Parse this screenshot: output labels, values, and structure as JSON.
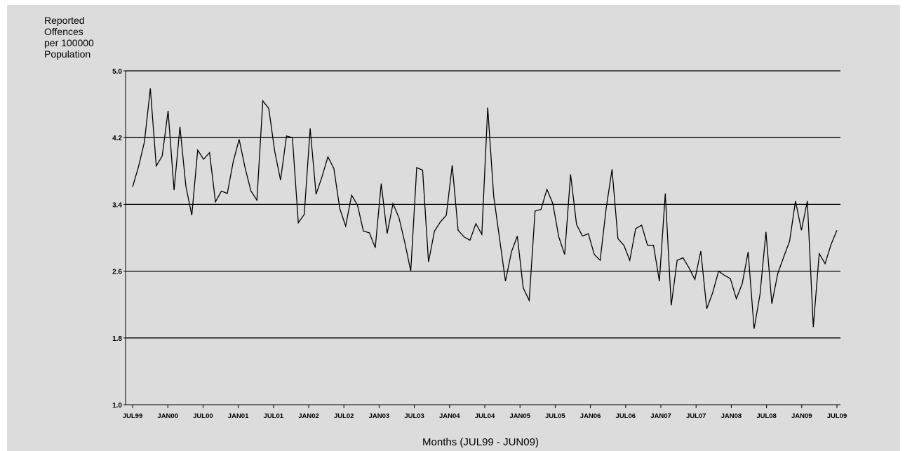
{
  "chart_data": {
    "type": "line",
    "ylabel_lines": [
      "Reported",
      "Offences",
      "per 100000",
      "Population"
    ],
    "xlabel": "Months (JUL99 - JUN09)",
    "ylim": [
      1.0,
      5.0
    ],
    "yticks": [
      "1.0",
      "1.8",
      "2.6",
      "3.4",
      "4.2",
      "5.0"
    ],
    "ytick_values": [
      1.0,
      1.8,
      2.6,
      3.4,
      4.2,
      5.0
    ],
    "gridlines": [
      1.8,
      2.6,
      3.4,
      4.2,
      5.0
    ],
    "xticks": [
      "JUL99",
      "JAN00",
      "JUL00",
      "JAN01",
      "JUL01",
      "JAN02",
      "JUL02",
      "JAN03",
      "JUL03",
      "JAN04",
      "JUL04",
      "JAN05",
      "JUL05",
      "JAN06",
      "JUL06",
      "JAN07",
      "JUL07",
      "JAN08",
      "JUL08",
      "JAN09",
      "JUL09"
    ],
    "series": [
      {
        "color": "#000000",
        "values": [
          3.61,
          3.85,
          4.15,
          4.79,
          3.86,
          3.98,
          4.52,
          3.57,
          4.33,
          3.62,
          3.27,
          4.05,
          3.94,
          4.02,
          3.43,
          3.56,
          3.53,
          3.91,
          4.18,
          3.84,
          3.56,
          3.45,
          4.64,
          4.55,
          4.04,
          3.69,
          4.22,
          4.2,
          3.18,
          3.28,
          4.31,
          3.52,
          3.73,
          3.97,
          3.83,
          3.35,
          3.14,
          3.51,
          3.39,
          3.08,
          3.06,
          2.88,
          3.65,
          3.05,
          3.41,
          3.24,
          2.94,
          2.6,
          3.84,
          3.81,
          2.71,
          3.08,
          3.19,
          3.27,
          3.87,
          3.09,
          3.01,
          2.97,
          3.17,
          3.04,
          4.56,
          3.5,
          2.99,
          2.48,
          2.83,
          3.02,
          2.4,
          2.25,
          3.32,
          3.34,
          3.58,
          3.41,
          3.01,
          2.8,
          3.76,
          3.16,
          3.02,
          3.05,
          2.8,
          2.73,
          3.35,
          3.82,
          2.99,
          2.91,
          2.73,
          3.11,
          3.15,
          2.91,
          2.91,
          2.48,
          3.53,
          2.19,
          2.73,
          2.76,
          2.64,
          2.5,
          2.84,
          2.15,
          2.34,
          2.6,
          2.55,
          2.51,
          2.27,
          2.45,
          2.83,
          1.91,
          2.32,
          3.07,
          2.21,
          2.57,
          2.77,
          2.96,
          3.44,
          3.09,
          3.44,
          1.93,
          2.81,
          2.69,
          2.92,
          3.09
        ]
      }
    ]
  }
}
